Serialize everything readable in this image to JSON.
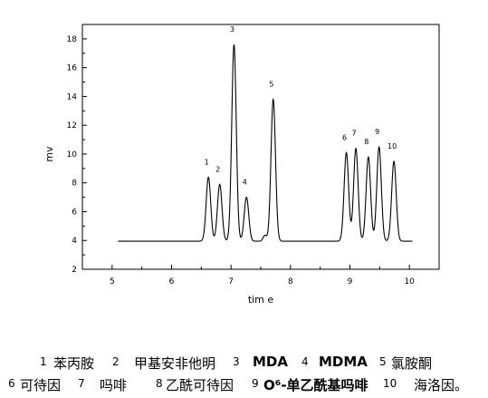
{
  "chart_data": {
    "type": "line",
    "title": "",
    "xlabel": "tim e",
    "ylabel": "mv",
    "xlim": [
      4.5,
      10.5
    ],
    "ylim": [
      2,
      19
    ],
    "x_ticks": [
      "5",
      "6",
      "7",
      "8",
      "9",
      "10"
    ],
    "y_ticks": [
      "2",
      "4",
      "6",
      "8",
      "10",
      "12",
      "14",
      "16",
      "18"
    ],
    "baseline": 3.95,
    "trace_start": 5.1,
    "trace_end": 10.05,
    "peaks": [
      {
        "label": "1",
        "x": 6.62,
        "y": 8.4
      },
      {
        "label": "2",
        "x": 6.81,
        "y": 7.9
      },
      {
        "label": "3",
        "x": 7.05,
        "y": 17.6
      },
      {
        "label": "4",
        "x": 7.26,
        "y": 7.0
      },
      {
        "label": "5",
        "x": 7.71,
        "y": 13.8
      },
      {
        "label": "6",
        "x": 8.94,
        "y": 10.1
      },
      {
        "label": "7",
        "x": 9.1,
        "y": 10.4
      },
      {
        "label": "8",
        "x": 9.31,
        "y": 9.8
      },
      {
        "label": "9",
        "x": 9.49,
        "y": 10.5
      },
      {
        "label": "10",
        "x": 9.74,
        "y": 9.5
      }
    ],
    "minor_bumps": [
      {
        "x": 7.57,
        "y": 4.35
      }
    ]
  },
  "legend": {
    "row1": [
      {
        "num": "1",
        "name": "苯丙胺"
      },
      {
        "num": "2",
        "name": "甲基安非他明"
      },
      {
        "num": "3",
        "name": "MDA"
      },
      {
        "num": "4",
        "name": "MDMA"
      },
      {
        "num": "5",
        "name": "氯胺酮"
      }
    ],
    "row2": [
      {
        "num": "6",
        "name": "可待因"
      },
      {
        "num": "7",
        "name": "吗啡"
      },
      {
        "num": "8",
        "name": "乙酰可待因"
      },
      {
        "num": "9",
        "name": "O⁶-单乙酰基吗啡"
      },
      {
        "num": "10",
        "name": "海洛因。"
      }
    ]
  }
}
